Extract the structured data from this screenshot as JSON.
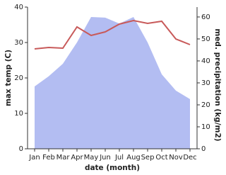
{
  "chart_data": {
    "type": "area-line",
    "x_label": "date (month)",
    "y_label": "max temp (C)",
    "y2_label": "med. precipitation (kg/m2)",
    "categories": [
      "Jan",
      "Feb",
      "Mar",
      "Apr",
      "May",
      "Jun",
      "Jul",
      "Aug",
      "Sep",
      "Oct",
      "Nov",
      "Dec"
    ],
    "ylim": [
      0,
      40
    ],
    "yticks": [
      0,
      10,
      20,
      30,
      40
    ],
    "y2lim": [
      0,
      64.5
    ],
    "y2ticks": [
      0,
      10,
      20,
      30,
      40,
      50,
      60
    ],
    "series": [
      {
        "name": "med. precipitation",
        "color": "#b3bdf2",
        "axis": "y2",
        "values": [
          28.4,
          33,
          38.7,
          48.4,
          60,
          59.7,
          57,
          60,
          48.4,
          33.9,
          26.5,
          22.6
        ]
      },
      {
        "name": "max temp",
        "color": "#c85a5a",
        "axis": "y",
        "values": [
          28.2,
          28.6,
          28.4,
          34.4,
          32,
          33,
          35.2,
          36.2,
          35.4,
          36,
          31,
          29.4
        ]
      }
    ]
  }
}
